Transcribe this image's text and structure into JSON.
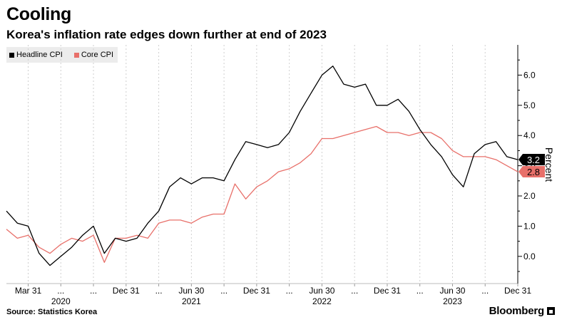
{
  "header": {
    "title": "Cooling",
    "subtitle": "Korea's inflation rate edges down further at end of 2023"
  },
  "footer": {
    "source": "Source: Statistics Korea",
    "brand": "Bloomberg"
  },
  "chart_data": {
    "type": "line",
    "ylabel": "Percent",
    "ylim": [
      -0.9,
      7.0
    ],
    "yticks": [
      0.0,
      1.0,
      2.0,
      3.0,
      4.0,
      5.0,
      6.0
    ],
    "grid": "vertical dashed at quarter ends",
    "legend": "top-left",
    "x_start": "2020-01",
    "x_end": "2023-12",
    "x_quarter_labels": [
      "Mar 31",
      "...",
      "...",
      "Dec 31",
      "...",
      "Jun 30",
      "...",
      "Dec 31",
      "...",
      "Jun 30",
      "...",
      "Dec 31",
      "...",
      "Jun 30",
      "...",
      "Dec 31"
    ],
    "x_year_labels": [
      {
        "label": "2020",
        "month": "2020-06"
      },
      {
        "label": "2021",
        "month": "2021-06"
      },
      {
        "label": "2022",
        "month": "2022-06"
      },
      {
        "label": "2023",
        "month": "2023-06"
      }
    ],
    "series": [
      {
        "name": "Headline CPI",
        "color": "#000000",
        "end_label": "3.2",
        "values": [
          1.5,
          1.1,
          1.0,
          0.1,
          -0.3,
          0.0,
          0.3,
          0.7,
          1.0,
          0.1,
          0.6,
          0.5,
          0.6,
          1.1,
          1.5,
          2.3,
          2.6,
          2.4,
          2.6,
          2.6,
          2.5,
          3.2,
          3.8,
          3.7,
          3.6,
          3.7,
          4.1,
          4.8,
          5.4,
          6.0,
          6.3,
          5.7,
          5.6,
          5.7,
          5.0,
          5.0,
          5.2,
          4.8,
          4.2,
          3.7,
          3.3,
          2.7,
          2.3,
          3.4,
          3.7,
          3.8,
          3.3,
          3.2
        ]
      },
      {
        "name": "Core CPI",
        "color": "#e8706a",
        "end_label": "2.8",
        "values": [
          0.9,
          0.6,
          0.7,
          0.3,
          0.1,
          0.4,
          0.6,
          0.5,
          0.7,
          -0.2,
          0.6,
          0.6,
          0.7,
          0.6,
          1.1,
          1.2,
          1.2,
          1.1,
          1.3,
          1.4,
          1.4,
          2.4,
          1.9,
          2.3,
          2.5,
          2.8,
          2.9,
          3.1,
          3.4,
          3.9,
          3.9,
          4.0,
          4.1,
          4.2,
          4.3,
          4.1,
          4.1,
          4.0,
          4.1,
          4.1,
          3.9,
          3.5,
          3.3,
          3.3,
          3.3,
          3.2,
          3.0,
          2.8
        ]
      }
    ]
  }
}
